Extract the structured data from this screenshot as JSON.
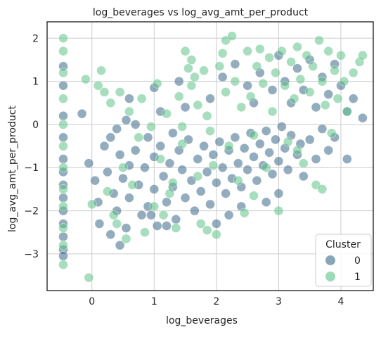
{
  "chart_data": {
    "type": "scatter",
    "title": "log_beverages vs log_avg_amt_per_product",
    "xlabel": "log_beverages",
    "ylabel": "log_avg_amt_per_product",
    "xlim": [
      -0.72,
      4.52
    ],
    "ylim": [
      -3.85,
      2.38
    ],
    "x_ticks": [
      0,
      1,
      2,
      3,
      4
    ],
    "y_ticks": [
      -3,
      -2,
      -1,
      0,
      1,
      2
    ],
    "x_tick_labels": [
      "0",
      "1",
      "2",
      "3",
      "4"
    ],
    "y_tick_labels": [
      "−3",
      "−2",
      "−1",
      "0",
      "1",
      "2"
    ],
    "grid": true,
    "legend": {
      "title": "Cluster",
      "placement": "lower-right"
    },
    "series": [
      {
        "name": "0",
        "color": "#3b6a8a",
        "points": [
          [
            -0.46,
            1.35
          ],
          [
            -0.46,
            0.9
          ],
          [
            -0.46,
            0.2
          ],
          [
            -0.46,
            -0.3
          ],
          [
            -0.46,
            -0.8
          ],
          [
            -0.46,
            -1.1
          ],
          [
            -0.46,
            -1.4
          ],
          [
            -0.46,
            -1.7
          ],
          [
            -0.46,
            -2.0
          ],
          [
            -0.46,
            -2.3
          ],
          [
            -0.46,
            -2.6
          ],
          [
            -0.46,
            -2.9
          ],
          [
            -0.46,
            -3.05
          ],
          [
            -0.16,
            0.25
          ],
          [
            -0.05,
            -0.9
          ],
          [
            0.05,
            -1.3
          ],
          [
            0.1,
            -1.8
          ],
          [
            0.12,
            -2.3
          ],
          [
            0.2,
            -0.5
          ],
          [
            0.25,
            -1.1
          ],
          [
            0.3,
            -0.3
          ],
          [
            0.3,
            -2.55
          ],
          [
            0.35,
            -1.6
          ],
          [
            0.4,
            -0.1
          ],
          [
            0.4,
            -2.0
          ],
          [
            0.45,
            -0.7
          ],
          [
            0.5,
            -1.25
          ],
          [
            0.55,
            0.1
          ],
          [
            0.55,
            -2.4
          ],
          [
            0.6,
            -0.95
          ],
          [
            0.6,
            -1.7
          ],
          [
            0.7,
            0.0
          ],
          [
            0.7,
            -0.6
          ],
          [
            0.75,
            -1.4
          ],
          [
            0.8,
            -2.1
          ],
          [
            0.85,
            -1.0
          ],
          [
            0.9,
            -0.3
          ],
          [
            0.9,
            -1.9
          ],
          [
            1.0,
            -0.75
          ],
          [
            1.0,
            -1.5
          ],
          [
            1.05,
            -2.35
          ],
          [
            1.1,
            -0.5
          ],
          [
            1.15,
            -1.2
          ],
          [
            1.2,
            -1.8
          ],
          [
            1.25,
            -0.9
          ],
          [
            1.3,
            -0.2
          ],
          [
            1.3,
            -1.45
          ],
          [
            1.35,
            -2.2
          ],
          [
            1.4,
            -0.6
          ],
          [
            1.45,
            -1.05
          ],
          [
            1.5,
            -1.7
          ],
          [
            1.55,
            -0.35
          ],
          [
            1.6,
            -1.3
          ],
          [
            1.65,
            -2.0
          ],
          [
            1.7,
            -0.8
          ],
          [
            1.75,
            -1.55
          ],
          [
            1.8,
            -0.5
          ],
          [
            1.85,
            -1.1
          ],
          [
            1.9,
            -1.85
          ],
          [
            1.95,
            -0.7
          ],
          [
            2.0,
            -1.35
          ],
          [
            2.05,
            -0.4
          ],
          [
            2.1,
            -1.0
          ],
          [
            2.15,
            -1.6
          ],
          [
            2.2,
            -0.6
          ],
          [
            2.25,
            -1.25
          ],
          [
            2.3,
            -0.3
          ],
          [
            2.35,
            -0.9
          ],
          [
            2.4,
            -1.45
          ],
          [
            2.45,
            -0.55
          ],
          [
            2.5,
            -1.05
          ],
          [
            2.55,
            -0.2
          ],
          [
            2.6,
            -0.75
          ],
          [
            2.65,
            -1.3
          ],
          [
            2.7,
            -0.45
          ],
          [
            2.75,
            -0.95
          ],
          [
            2.8,
            -0.15
          ],
          [
            2.85,
            -0.65
          ],
          [
            2.9,
            -1.15
          ],
          [
            2.95,
            -0.35
          ],
          [
            3.0,
            -0.85
          ],
          [
            3.05,
            -0.05
          ],
          [
            3.1,
            -0.55
          ],
          [
            3.15,
            -1.05
          ],
          [
            3.2,
            -0.25
          ],
          [
            3.3,
            -0.7
          ],
          [
            3.35,
            -0.45
          ],
          [
            3.4,
            -1.2
          ],
          [
            3.5,
            -0.35
          ],
          [
            3.6,
            -0.8
          ],
          [
            3.7,
            -0.1
          ],
          [
            3.8,
            -0.6
          ],
          [
            3.9,
            -0.3
          ],
          [
            4.1,
            -0.8
          ],
          [
            4.2,
            0.6
          ],
          [
            4.35,
            0.15
          ],
          [
            2.1,
            1.1
          ],
          [
            2.3,
            1.4
          ],
          [
            2.5,
            0.9
          ],
          [
            2.6,
            0.5
          ],
          [
            2.7,
            1.2
          ],
          [
            2.9,
            0.8
          ],
          [
            3.0,
            1.6
          ],
          [
            3.1,
            1.0
          ],
          [
            3.2,
            0.5
          ],
          [
            3.3,
            1.3
          ],
          [
            3.4,
            0.8
          ],
          [
            3.5,
            1.5
          ],
          [
            3.6,
            0.4
          ],
          [
            3.7,
            1.1
          ],
          [
            3.8,
            0.7
          ],
          [
            3.9,
            1.4
          ],
          [
            4.0,
            0.9
          ],
          [
            4.1,
            0.3
          ],
          [
            1.0,
            0.85
          ],
          [
            1.1,
            0.3
          ],
          [
            1.5,
            0.4
          ],
          [
            1.9,
            0.6
          ],
          [
            1.4,
            1.0
          ],
          [
            0.6,
            0.6
          ],
          [
            2.0,
            -2.3
          ],
          [
            2.2,
            -2.1
          ],
          [
            2.4,
            -1.9
          ],
          [
            2.8,
            -1.8
          ],
          [
            3.0,
            -1.6
          ],
          [
            1.2,
            -2.35
          ],
          [
            0.95,
            -2.1
          ],
          [
            0.45,
            -2.8
          ]
        ]
      },
      {
        "name": "1",
        "color": "#5ec287",
        "points": [
          [
            -0.46,
            2.0
          ],
          [
            -0.46,
            1.7
          ],
          [
            -0.46,
            1.2
          ],
          [
            -0.46,
            0.6
          ],
          [
            -0.46,
            0.0
          ],
          [
            -0.46,
            -0.5
          ],
          [
            -0.46,
            -1.0
          ],
          [
            -0.46,
            -1.5
          ],
          [
            -0.46,
            -1.9
          ],
          [
            -0.46,
            -2.4
          ],
          [
            -0.46,
            -2.8
          ],
          [
            -0.46,
            -3.25
          ],
          [
            -0.1,
            1.05
          ],
          [
            0.1,
            0.9
          ],
          [
            0.15,
            1.25
          ],
          [
            0.2,
            0.75
          ],
          [
            0.25,
            -1.55
          ],
          [
            0.3,
            0.5
          ],
          [
            0.35,
            -2.1
          ],
          [
            0.45,
            0.75
          ],
          [
            0.5,
            -1.0
          ],
          [
            0.55,
            -2.65
          ],
          [
            0.6,
            0.3
          ],
          [
            0.65,
            -1.4
          ],
          [
            0.75,
            -0.3
          ],
          [
            0.8,
            0.6
          ],
          [
            0.85,
            -2.5
          ],
          [
            0.95,
            -0.05
          ],
          [
            1.0,
            -1.9
          ],
          [
            1.05,
            0.95
          ],
          [
            1.1,
            -0.8
          ],
          [
            1.2,
            0.25
          ],
          [
            1.25,
            -1.6
          ],
          [
            1.35,
            -2.4
          ],
          [
            1.4,
            0.65
          ],
          [
            1.45,
            -0.45
          ],
          [
            1.5,
            1.7
          ],
          [
            1.55,
            1.3
          ],
          [
            1.6,
            0.9
          ],
          [
            1.6,
            1.5
          ],
          [
            1.65,
            1.1
          ],
          [
            1.7,
            0.45
          ],
          [
            1.7,
            -1.2
          ],
          [
            1.75,
            -2.3
          ],
          [
            1.8,
            1.25
          ],
          [
            1.85,
            0.2
          ],
          [
            1.9,
            -0.15
          ],
          [
            1.95,
            -0.95
          ],
          [
            2.0,
            -2.55
          ],
          [
            2.05,
            1.35
          ],
          [
            2.1,
            1.65
          ],
          [
            2.15,
            0.75
          ],
          [
            2.15,
            1.95
          ],
          [
            2.2,
            -0.5
          ],
          [
            2.25,
            2.05
          ],
          [
            2.3,
            1.0
          ],
          [
            2.35,
            -1.3
          ],
          [
            2.4,
            0.4
          ],
          [
            2.45,
            -2.05
          ],
          [
            2.5,
            1.7
          ],
          [
            2.55,
            0.65
          ],
          [
            2.6,
            -0.25
          ],
          [
            2.65,
            1.35
          ],
          [
            2.7,
            1.75
          ],
          [
            2.75,
            0.95
          ],
          [
            2.8,
            -1.0
          ],
          [
            2.85,
            1.55
          ],
          [
            2.9,
            0.3
          ],
          [
            2.95,
            1.2
          ],
          [
            3.0,
            -2.0
          ],
          [
            3.05,
            1.7
          ],
          [
            3.1,
            0.9
          ],
          [
            3.15,
            -0.4
          ],
          [
            3.2,
            1.45
          ],
          [
            3.25,
            0.6
          ],
          [
            3.3,
            1.8
          ],
          [
            3.35,
            1.05
          ],
          [
            3.4,
            -0.9
          ],
          [
            3.45,
            1.6
          ],
          [
            3.5,
            0.75
          ],
          [
            3.55,
            1.35
          ],
          [
            3.6,
            -1.4
          ],
          [
            3.65,
            1.95
          ],
          [
            3.7,
            1.0
          ],
          [
            3.75,
            0.45
          ],
          [
            3.8,
            1.7
          ],
          [
            3.85,
            -0.2
          ],
          [
            3.9,
            1.25
          ],
          [
            3.95,
            0.6
          ],
          [
            4.0,
            1.6
          ],
          [
            4.05,
            1.0
          ],
          [
            4.1,
            0.3
          ],
          [
            4.2,
            1.2
          ],
          [
            4.3,
            1.45
          ],
          [
            4.35,
            1.6
          ],
          [
            3.3,
            -0.6
          ],
          [
            1.45,
            -0.05
          ],
          [
            1.3,
            -1.35
          ],
          [
            2.6,
            -1.65
          ],
          [
            3.7,
            -1.5
          ],
          [
            -0.05,
            -3.55
          ],
          [
            0.0,
            -1.85
          ],
          [
            0.4,
            -2.3
          ],
          [
            1.15,
            -2.1
          ],
          [
            1.85,
            -2.45
          ]
        ]
      }
    ]
  }
}
